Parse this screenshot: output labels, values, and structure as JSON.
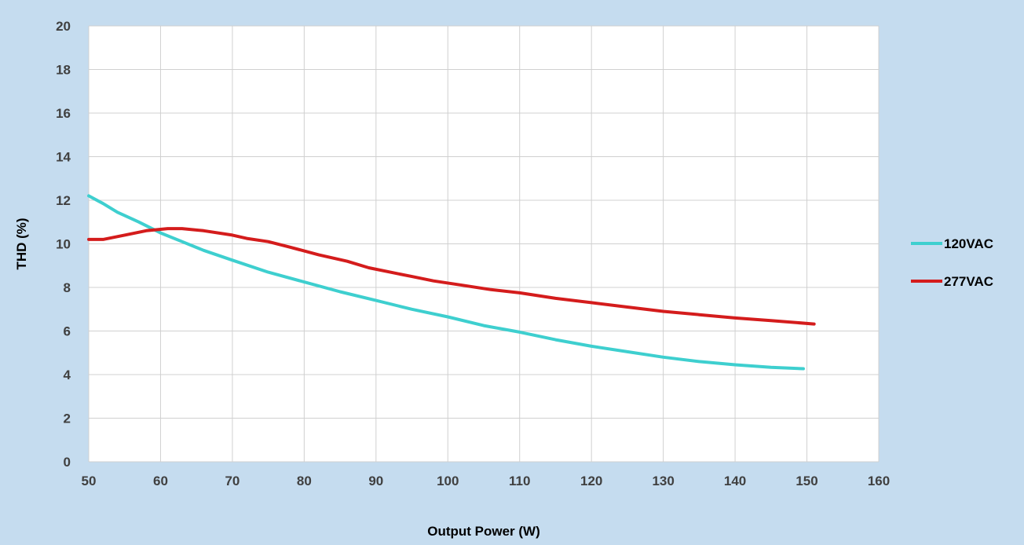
{
  "chart_data": {
    "type": "line",
    "title": "",
    "xlabel": "Output Power (W)",
    "ylabel": "THD (%)",
    "xlim": [
      50,
      160
    ],
    "ylim": [
      0,
      20
    ],
    "xticks": [
      "50",
      "60",
      "70",
      "80",
      "90",
      "100",
      "110",
      "120",
      "130",
      "140",
      "150",
      "160"
    ],
    "yticks": [
      "0",
      "2",
      "4",
      "6",
      "8",
      "10",
      "12",
      "14",
      "16",
      "18",
      "20"
    ],
    "grid": true,
    "legend_position": "right",
    "background_color": "#c5dcef",
    "plot_area_color": "#ffffff",
    "series": [
      {
        "name": "120VAC",
        "color": "#3ecfcf",
        "points": [
          [
            50,
            12.2
          ],
          [
            52,
            11.85
          ],
          [
            54,
            11.45
          ],
          [
            55,
            11.3
          ],
          [
            57,
            11.0
          ],
          [
            60,
            10.5
          ],
          [
            63,
            10.1
          ],
          [
            66,
            9.7
          ],
          [
            70,
            9.25
          ],
          [
            75,
            8.7
          ],
          [
            80,
            8.25
          ],
          [
            85,
            7.8
          ],
          [
            90,
            7.4
          ],
          [
            95,
            7.0
          ],
          [
            100,
            6.65
          ],
          [
            105,
            6.25
          ],
          [
            110,
            5.95
          ],
          [
            115,
            5.6
          ],
          [
            120,
            5.3
          ],
          [
            125,
            5.05
          ],
          [
            130,
            4.8
          ],
          [
            135,
            4.6
          ],
          [
            140,
            4.45
          ],
          [
            145,
            4.33
          ],
          [
            149.5,
            4.27
          ]
        ]
      },
      {
        "name": "277VAC",
        "color": "#d41c1c",
        "points": [
          [
            50,
            10.2
          ],
          [
            52,
            10.2
          ],
          [
            55,
            10.4
          ],
          [
            58,
            10.6
          ],
          [
            61,
            10.7
          ],
          [
            63,
            10.7
          ],
          [
            66,
            10.6
          ],
          [
            70,
            10.4
          ],
          [
            72,
            10.25
          ],
          [
            75,
            10.1
          ],
          [
            78,
            9.85
          ],
          [
            82,
            9.5
          ],
          [
            86,
            9.2
          ],
          [
            89,
            8.9
          ],
          [
            92,
            8.7
          ],
          [
            95,
            8.5
          ],
          [
            98,
            8.3
          ],
          [
            102,
            8.1
          ],
          [
            106,
            7.9
          ],
          [
            110,
            7.75
          ],
          [
            115,
            7.5
          ],
          [
            120,
            7.3
          ],
          [
            125,
            7.1
          ],
          [
            130,
            6.9
          ],
          [
            135,
            6.75
          ],
          [
            140,
            6.6
          ],
          [
            145,
            6.48
          ],
          [
            151,
            6.32
          ]
        ]
      }
    ]
  }
}
